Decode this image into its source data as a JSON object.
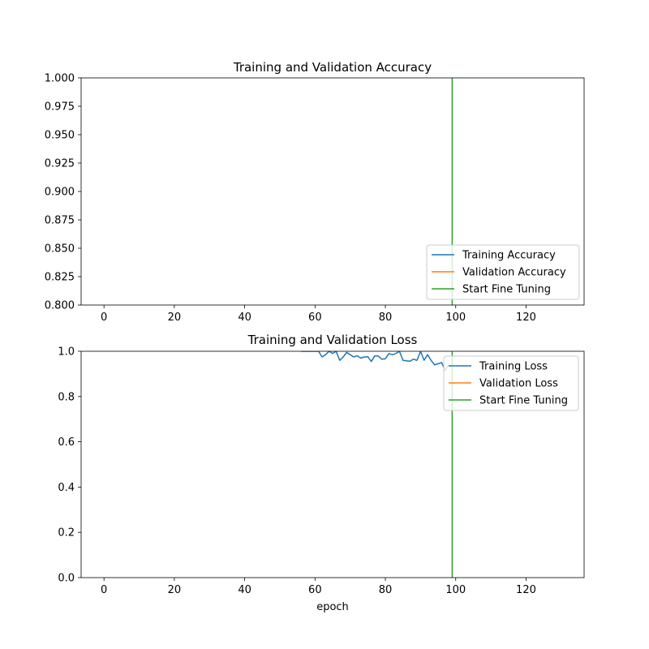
{
  "chart_data": [
    {
      "type": "line",
      "title": "Training and Validation Accuracy",
      "xlabel": "",
      "ylabel": "",
      "xlim": [
        -6.5,
        136.5
      ],
      "ylim": [
        0.8,
        1.0
      ],
      "xticks": [
        "0",
        "20",
        "40",
        "60",
        "80",
        "100",
        "120"
      ],
      "yticks": [
        "0.800",
        "0.825",
        "0.850",
        "0.875",
        "0.900",
        "0.925",
        "0.950",
        "0.975",
        "1.000"
      ],
      "legend_position": "lower right",
      "series": [
        {
          "name": "Training Accuracy",
          "color": "#1f77b4",
          "x": [],
          "y": []
        },
        {
          "name": "Validation Accuracy",
          "color": "#ff7f0e",
          "x": [],
          "y": []
        }
      ],
      "vline": {
        "name": "Start Fine Tuning",
        "color": "#2ca02c",
        "x": 99
      }
    },
    {
      "type": "line",
      "title": "Training and Validation Loss",
      "xlabel": "epoch",
      "ylabel": "",
      "xlim": [
        -6.5,
        136.5
      ],
      "ylim": [
        0.0,
        1.0
      ],
      "xticks": [
        "0",
        "20",
        "40",
        "60",
        "80",
        "100",
        "120"
      ],
      "yticks": [
        "0.0",
        "0.2",
        "0.4",
        "0.6",
        "0.8",
        "1.0"
      ],
      "legend_position": "upper right",
      "series": [
        {
          "name": "Training Loss",
          "color": "#1f77b4",
          "x": [
            56,
            57,
            58,
            59,
            60,
            61,
            62,
            63,
            64,
            65,
            66,
            67,
            68,
            69,
            70,
            71,
            72,
            73,
            74,
            75,
            76,
            77,
            78,
            79,
            80,
            81,
            82,
            83,
            84,
            85,
            86,
            87,
            88,
            89,
            90,
            91,
            92,
            93,
            94,
            95,
            96,
            97,
            98
          ],
          "y": [
            1.0,
            1.0,
            1.0,
            1.0,
            1.0,
            1.0,
            0.975,
            0.985,
            1.0,
            0.99,
            1.0,
            0.96,
            0.975,
            0.995,
            0.985,
            0.975,
            0.98,
            0.97,
            0.975,
            0.976,
            0.955,
            0.98,
            0.979,
            0.965,
            0.967,
            0.99,
            0.985,
            0.99,
            1.0,
            0.96,
            0.958,
            0.956,
            0.965,
            0.96,
            1.0,
            0.96,
            0.985,
            0.96,
            0.94,
            0.945,
            0.95,
            0.915,
            0.94
          ]
        },
        {
          "name": "Validation Loss",
          "color": "#ff7f0e",
          "x": [],
          "y": []
        }
      ],
      "vline": {
        "name": "Start Fine Tuning",
        "color": "#2ca02c",
        "x": 99
      }
    }
  ]
}
